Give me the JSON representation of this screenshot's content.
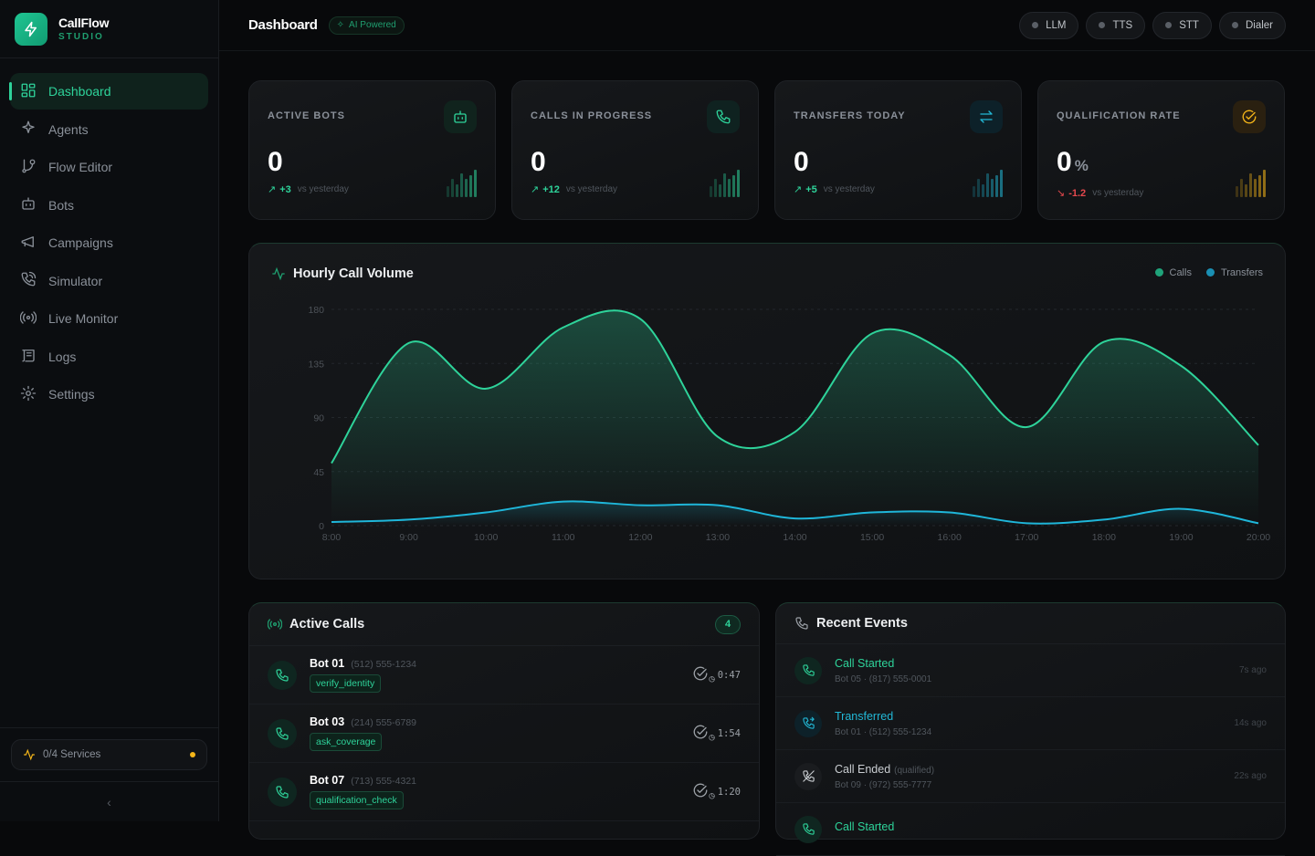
{
  "brand": {
    "name": "CallFlow",
    "sub": "STUDIO"
  },
  "sidebar": {
    "items": [
      {
        "label": "Dashboard",
        "icon": "layout-grid-icon",
        "active": true
      },
      {
        "label": "Agents",
        "icon": "sparkles-icon"
      },
      {
        "label": "Flow Editor",
        "icon": "git-branch-icon"
      },
      {
        "label": "Bots",
        "icon": "bot-icon"
      },
      {
        "label": "Campaigns",
        "icon": "megaphone-icon"
      },
      {
        "label": "Simulator",
        "icon": "phone-call-icon"
      },
      {
        "label": "Live Monitor",
        "icon": "radio-icon"
      },
      {
        "label": "Logs",
        "icon": "scroll-icon"
      },
      {
        "label": "Settings",
        "icon": "gear-icon"
      }
    ],
    "services": "0/4 Services",
    "services_color": "#f5b619"
  },
  "header": {
    "title": "Dashboard",
    "badge": "AI Powered",
    "pills": [
      "LLM",
      "TTS",
      "STT",
      "Dialer"
    ]
  },
  "stats": [
    {
      "label": "ACTIVE BOTS",
      "value": "0",
      "unit": "",
      "delta": "+3",
      "vs": "vs yesterday",
      "color": "#2ed39a",
      "trend": "up",
      "icon": "bot-icon"
    },
    {
      "label": "CALLS IN PROGRESS",
      "value": "0",
      "unit": "",
      "delta": "+12",
      "vs": "vs yesterday",
      "color": "#2ed39a",
      "trend": "up",
      "icon": "phone-icon"
    },
    {
      "label": "TRANSFERS TODAY",
      "value": "0",
      "unit": "",
      "delta": "+5",
      "vs": "vs yesterday",
      "color": "#22b8d6",
      "trend": "up",
      "icon": "arrows-exchange-icon"
    },
    {
      "label": "QUALIFICATION RATE",
      "value": "0",
      "unit": "%",
      "delta": "-1.2",
      "vs": "vs yesterday",
      "color": "#f5b619",
      "trend": "down",
      "icon": "check-circle-icon"
    }
  ],
  "chart_data": {
    "type": "area",
    "title": "Hourly Call Volume",
    "categories": [
      "8:00",
      "9:00",
      "10:00",
      "11:00",
      "12:00",
      "13:00",
      "14:00",
      "15:00",
      "16:00",
      "17:00",
      "18:00",
      "19:00",
      "20:00"
    ],
    "series": [
      {
        "name": "Calls",
        "color": "#2ed39a",
        "values": [
          52,
          152,
          114,
          165,
          172,
          74,
          78,
          160,
          142,
          82,
          153,
          133,
          67
        ]
      },
      {
        "name": "Transfers",
        "color": "#1fb6d9",
        "values": [
          3,
          5,
          11,
          20,
          17,
          17,
          6,
          11,
          11,
          2,
          5,
          14,
          2
        ]
      }
    ],
    "yticks": [
      0,
      45,
      90,
      135,
      180
    ],
    "ylim": [
      0,
      180
    ],
    "grid": true,
    "legend": "top-right"
  },
  "active_calls": {
    "title": "Active Calls",
    "count": "4",
    "rows": [
      {
        "bot": "Bot 01",
        "phone": "(512) 555-1234",
        "step": "verify_identity",
        "duration": "0:47"
      },
      {
        "bot": "Bot 03",
        "phone": "(214) 555-6789",
        "step": "ask_coverage",
        "duration": "1:54"
      },
      {
        "bot": "Bot 07",
        "phone": "(713) 555-4321",
        "step": "qualification_check",
        "duration": "1:20"
      }
    ]
  },
  "recent_events": {
    "title": "Recent Events",
    "rows": [
      {
        "title": "Call Started",
        "note": "",
        "sub": "Bot 05 · (817) 555-0001",
        "time": "7s ago",
        "color": "#2ed39a",
        "icon": "phone-icon"
      },
      {
        "title": "Transferred",
        "note": "",
        "sub": "Bot 01 · (512) 555-1234",
        "time": "14s ago",
        "color": "#22b8d6",
        "icon": "phone-forward-icon"
      },
      {
        "title": "Call Ended",
        "note": "(qualified)",
        "sub": "Bot 09 · (972) 555-7777",
        "time": "22s ago",
        "color": "#c9cdd1",
        "icon": "phone-off-icon"
      },
      {
        "title": "Call Started",
        "note": "",
        "sub": "",
        "time": "",
        "color": "#2ed39a",
        "icon": "phone-icon"
      }
    ]
  }
}
